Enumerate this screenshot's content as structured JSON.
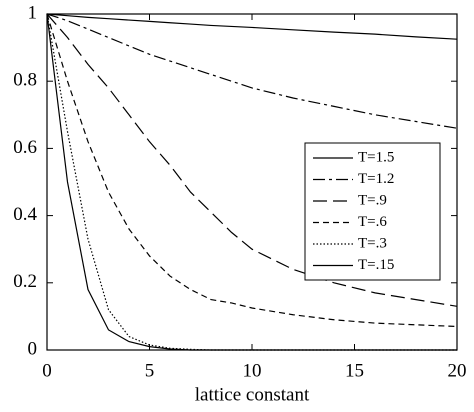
{
  "chart_data": {
    "type": "line",
    "x_label": "lattice constant",
    "x": [
      0,
      1,
      2,
      3,
      4,
      5,
      6,
      7,
      8,
      9,
      10,
      12,
      14,
      16,
      18,
      20
    ],
    "series": [
      {
        "name": "T=1.5",
        "color": "#000000",
        "style": "solid",
        "values": [
          1,
          0.995,
          0.99,
          0.986,
          0.982,
          0.978,
          0.974,
          0.97,
          0.966,
          0.963,
          0.96,
          0.953,
          0.946,
          0.94,
          0.932,
          0.925
        ]
      },
      {
        "name": "T=1.2",
        "color": "#000000",
        "style": "dashdot",
        "values": [
          1,
          0.98,
          0.955,
          0.93,
          0.905,
          0.88,
          0.86,
          0.84,
          0.82,
          0.8,
          0.78,
          0.75,
          0.725,
          0.7,
          0.68,
          0.66
        ]
      },
      {
        "name": "T=.9",
        "color": "#000000",
        "style": "longdash",
        "values": [
          1,
          0.93,
          0.85,
          0.78,
          0.7,
          0.62,
          0.55,
          0.47,
          0.41,
          0.35,
          0.3,
          0.24,
          0.2,
          0.17,
          0.15,
          0.13
        ]
      },
      {
        "name": "T=.6",
        "color": "#000000",
        "style": "dash",
        "values": [
          1,
          0.8,
          0.62,
          0.47,
          0.36,
          0.28,
          0.22,
          0.18,
          0.15,
          0.14,
          0.125,
          0.105,
          0.09,
          0.08,
          0.075,
          0.07
        ]
      },
      {
        "name": "T=.3",
        "color": "#000000",
        "style": "dot",
        "values": [
          1,
          0.65,
          0.33,
          0.12,
          0.04,
          0.015,
          0.005,
          0.002,
          0,
          0,
          0,
          0,
          0,
          0,
          0,
          0
        ]
      },
      {
        "name": "T=.15",
        "color": "#000000",
        "style": "solid",
        "values": [
          1,
          0.5,
          0.18,
          0.06,
          0.025,
          0.01,
          0.003,
          0,
          0,
          0,
          0,
          0,
          0,
          0,
          0,
          0
        ]
      }
    ],
    "xlim": [
      0,
      20
    ],
    "xticks": [
      0,
      5,
      10,
      15,
      20
    ],
    "ylim": [
      0,
      1
    ],
    "yticks": [
      0,
      0.2,
      0.4,
      0.6,
      0.8,
      1
    ],
    "grid": false,
    "legend": "right"
  }
}
